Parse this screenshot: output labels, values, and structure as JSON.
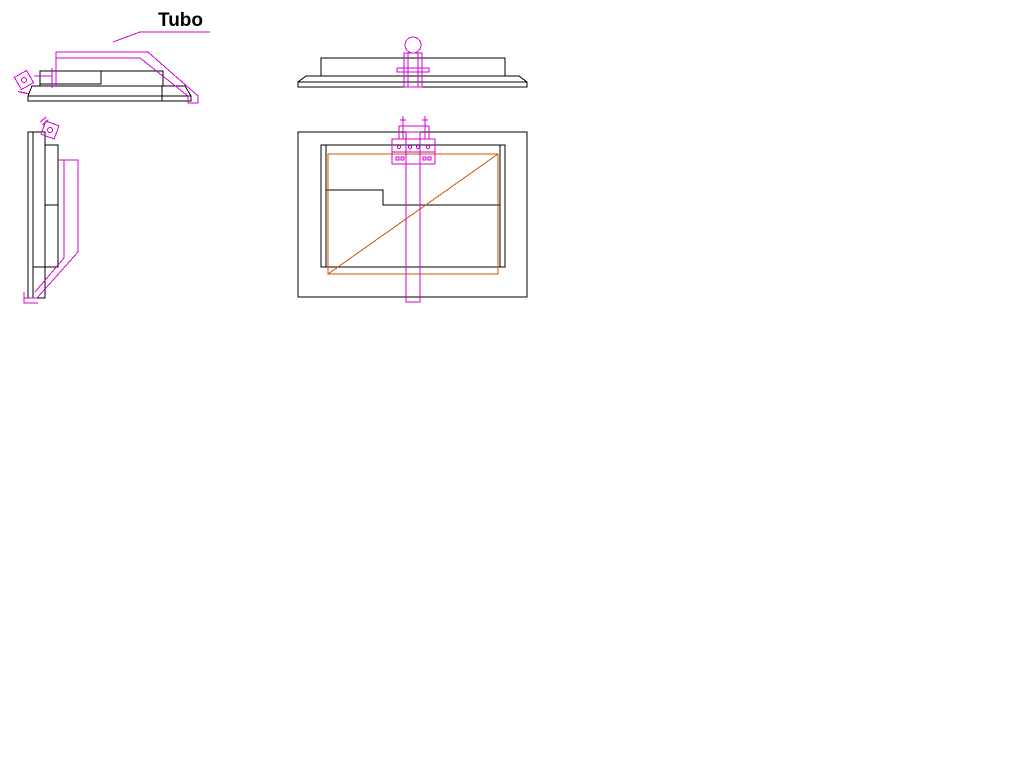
{
  "drawing": {
    "label": "Tubo",
    "colors": {
      "background": "#ffffff",
      "outline": "#000000",
      "tube": "#d400d4",
      "screen": "#d35400"
    }
  }
}
